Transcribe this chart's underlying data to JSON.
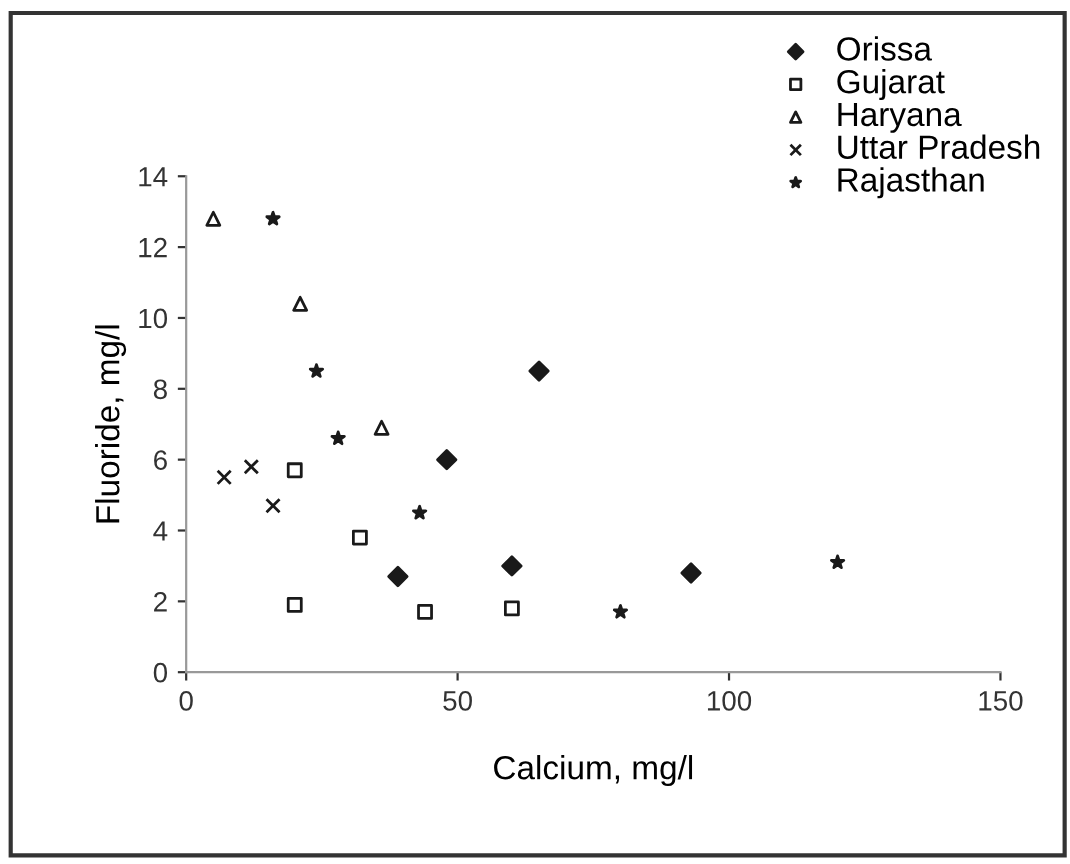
{
  "chart_data": {
    "type": "scatter",
    "xlabel": "Calcium, mg/l",
    "ylabel": "Fluoride, mg/l",
    "xlim": [
      0,
      150
    ],
    "xticks": [
      0,
      50,
      100,
      150
    ],
    "ylim": [
      0,
      14
    ],
    "yticks": [
      0,
      2,
      4,
      6,
      8,
      10,
      12,
      14
    ],
    "grid": false,
    "legend": "top right",
    "series": [
      {
        "name": "Orissa",
        "color": "#1a1a1a",
        "marker": "diamond",
        "x": [
          65,
          39,
          48,
          60,
          93
        ],
        "values": [
          8.5,
          2.7,
          6.0,
          3.0,
          2.8
        ]
      },
      {
        "name": "Gujarat",
        "color": "#1a1a1a",
        "marker": "square",
        "x": [
          20,
          32,
          20,
          44,
          60
        ],
        "values": [
          5.7,
          3.8,
          1.9,
          1.7,
          1.8
        ]
      },
      {
        "name": "Haryana",
        "color": "#1a1a1a",
        "marker": "triangle",
        "x": [
          5,
          21,
          36
        ],
        "values": [
          12.8,
          10.4,
          6.9
        ]
      },
      {
        "name": "Uttar Pradesh",
        "color": "#1a1a1a",
        "marker": "cross",
        "x": [
          7,
          12,
          16
        ],
        "values": [
          5.5,
          5.8,
          4.7
        ]
      },
      {
        "name": "Rajasthan",
        "color": "#1a1a1a",
        "marker": "star",
        "x": [
          16,
          24,
          28,
          43,
          80,
          120
        ],
        "values": [
          12.8,
          8.5,
          6.6,
          4.5,
          1.7,
          3.1
        ]
      }
    ]
  }
}
